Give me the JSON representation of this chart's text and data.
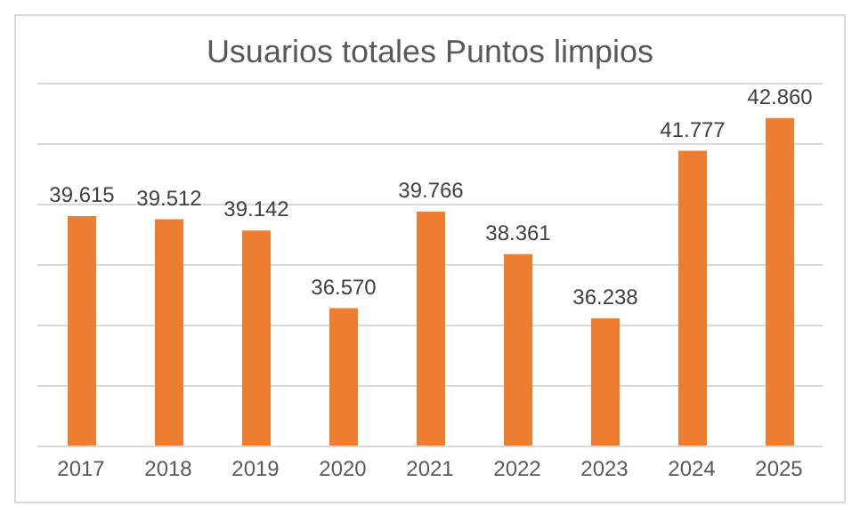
{
  "chart_data": {
    "type": "bar",
    "title": "Usuarios totales Puntos limpios",
    "categories": [
      "2017",
      "2018",
      "2019",
      "2020",
      "2021",
      "2022",
      "2023",
      "2024",
      "2025"
    ],
    "values": [
      39615,
      39512,
      39142,
      36570,
      39766,
      38361,
      36238,
      41777,
      42860
    ],
    "value_labels": [
      "39.615",
      "39.512",
      "39.142",
      "36.570",
      "39.766",
      "38.361",
      "36.238",
      "41.777",
      "42.860"
    ],
    "color": "#ed7d31",
    "ylim": [
      32000,
      44000
    ],
    "yticks": [
      {
        "value": 32000,
        "label": null
      },
      {
        "value": 34000,
        "label": null
      },
      {
        "value": 36000,
        "label": null
      },
      {
        "value": 38000,
        "label": null
      },
      {
        "value": 40000,
        "label": null
      },
      {
        "value": 42000,
        "label": null
      },
      {
        "value": 44000,
        "label": null
      }
    ],
    "grid": "y",
    "tick_labels": "x"
  }
}
